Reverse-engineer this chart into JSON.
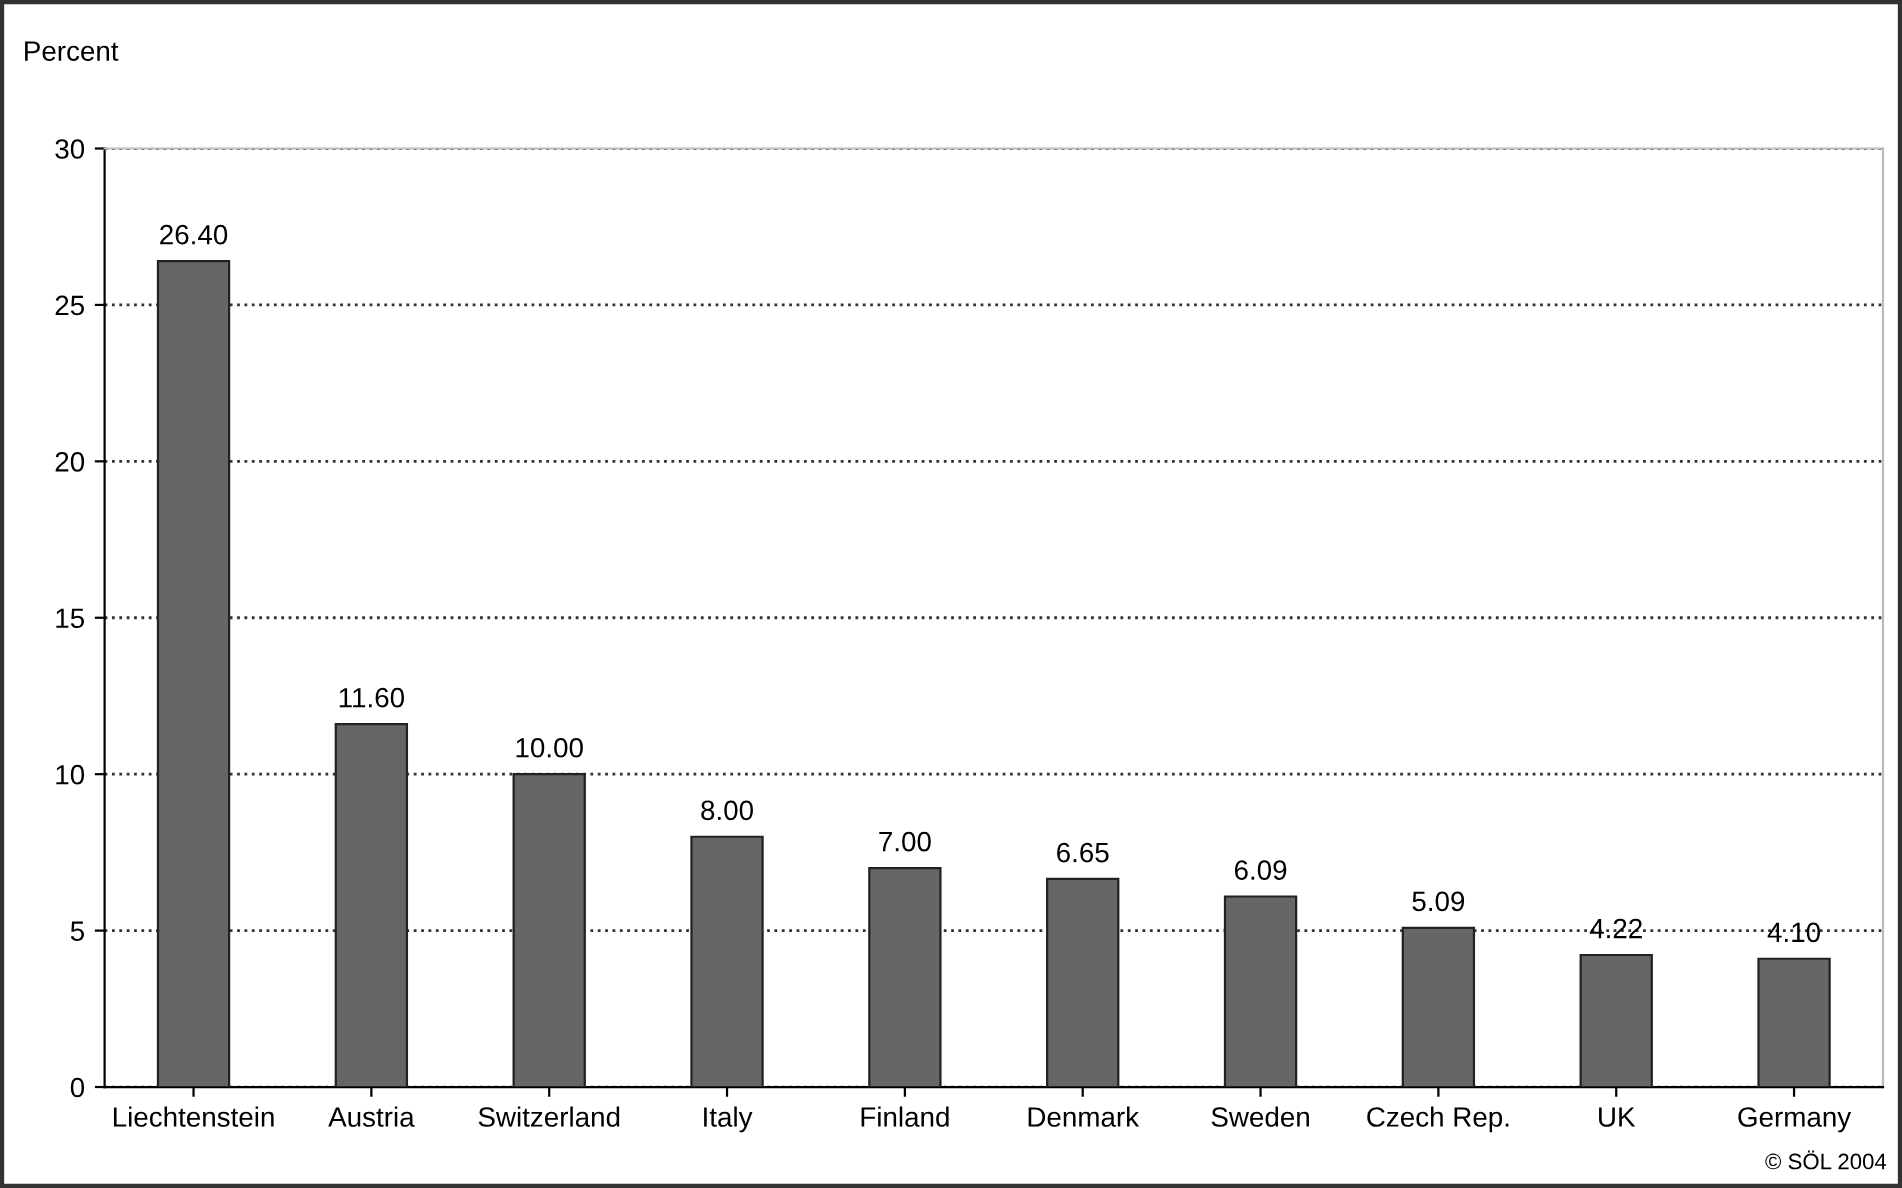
{
  "chart_data": {
    "type": "bar",
    "ylabel": "Percent",
    "categories": [
      "Liechtenstein",
      "Austria",
      "Switzerland",
      "Italy",
      "Finland",
      "Denmark",
      "Sweden",
      "Czech Rep.",
      "UK",
      "Germany"
    ],
    "values": [
      26.4,
      11.6,
      10.0,
      8.0,
      7.0,
      6.65,
      6.09,
      5.09,
      4.22,
      4.1
    ],
    "value_labels": [
      "26.40",
      "11.60",
      "10.00",
      "8.00",
      "7.00",
      "6.65",
      "6.09",
      "5.09",
      "4.22",
      "4.10"
    ],
    "color": "#666666",
    "ylim": [
      0,
      30
    ],
    "yticks": [
      0,
      5,
      10,
      15,
      20,
      25,
      30
    ],
    "grid": "y",
    "line_style": "dotted",
    "annotations": [
      "© SÖL 2004"
    ]
  }
}
